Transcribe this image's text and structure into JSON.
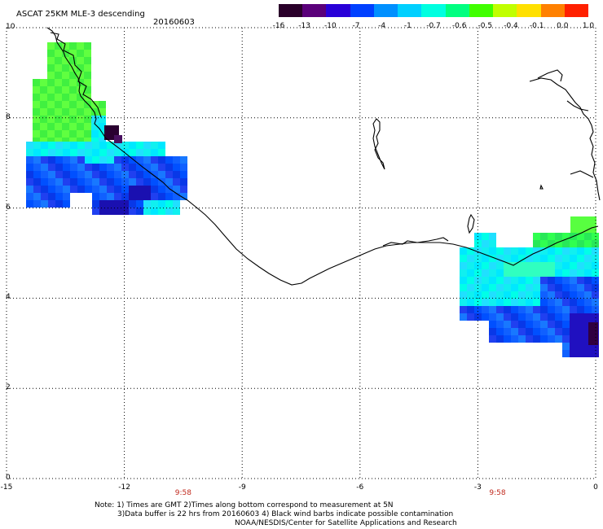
{
  "title": "ASCAT 25KM MLE-3 descending",
  "date": "20160603",
  "colorbar": {
    "labels": [
      "-16",
      "-13",
      "-10",
      "-7",
      "-4",
      "-1",
      "-0.7",
      "-0.6",
      "-0.5",
      "-0.4",
      "-0.1",
      "0.0",
      "1.0"
    ],
    "colors": [
      "#2a002a",
      "#5a007a",
      "#2800d8",
      "#0040ff",
      "#0090ff",
      "#00d0ff",
      "#00ffe0",
      "#00ff80",
      "#40ff00",
      "#c0ff00",
      "#ffe000",
      "#ff8000",
      "#ff2000"
    ]
  },
  "axes": {
    "x_ticks": [
      "-15",
      "-12",
      "-9",
      "-6",
      "-3",
      "0"
    ],
    "y_ticks": [
      "0",
      "2",
      "4",
      "6",
      "8",
      "10"
    ],
    "xlim": [
      -15,
      0
    ],
    "ylim": [
      0,
      10
    ],
    "grid": true
  },
  "time_labels": [
    {
      "lon": -10.5,
      "text": "9:58"
    },
    {
      "lon": -2.5,
      "text": "9:58"
    }
  ],
  "notes": {
    "line1": "Note: 1) Times are GMT 2)Times along bottom correspond to measurement at 5N",
    "line2": "3)Data buffer is 22 hrs from 20160603 4) Black wind barbs indicate possible contamination",
    "line3": "NOAA/NESDIS/Center for Satellite Applications and Research"
  },
  "colors": {
    "grid": "#000000",
    "coast": "#000000",
    "time_label": "#c0281c"
  }
}
